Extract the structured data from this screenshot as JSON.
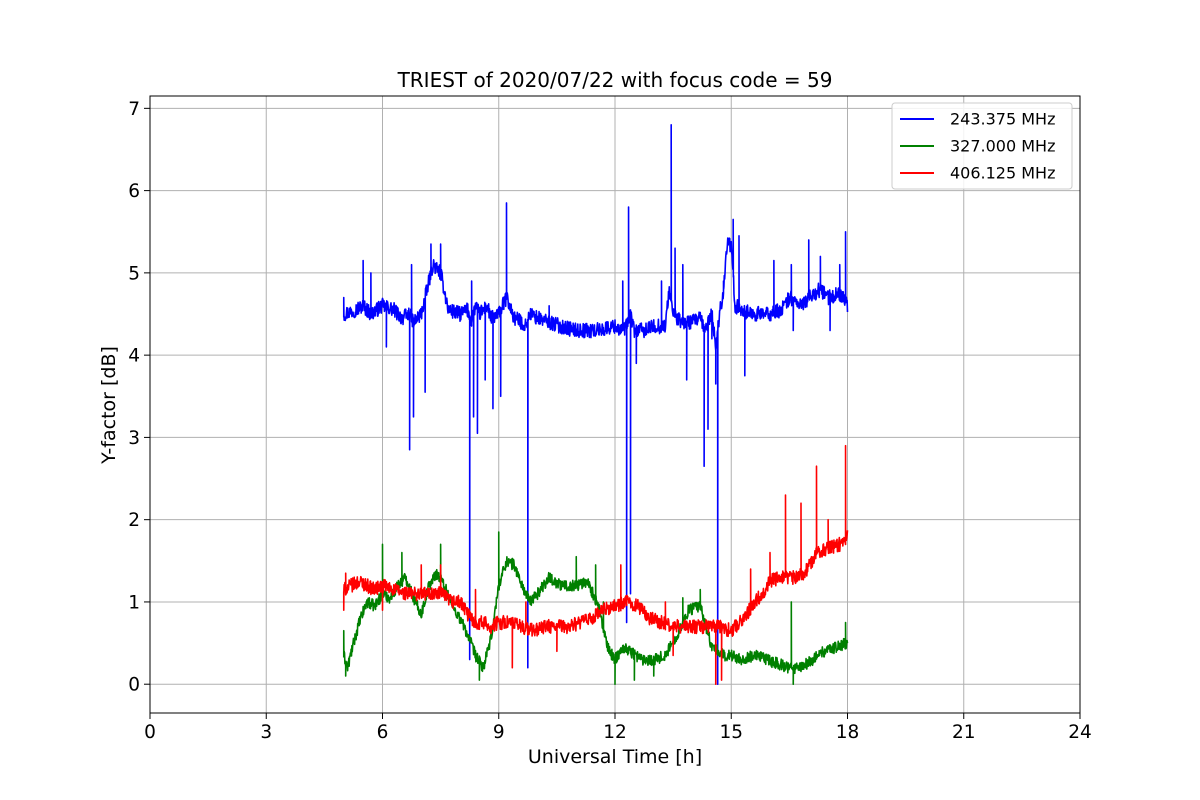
{
  "chart_data": {
    "type": "line",
    "title": "TRIEST of 2020/07/22 with focus code = 59",
    "xlabel": "Universal Time [h]",
    "ylabel": "Y-factor [dB]",
    "xlim": [
      0,
      24
    ],
    "ylim": [
      -0.35,
      7.15
    ],
    "xticks": [
      0,
      3,
      6,
      9,
      12,
      15,
      18,
      21,
      24
    ],
    "yticks": [
      0,
      1,
      2,
      3,
      4,
      5,
      6,
      7
    ],
    "grid": true,
    "legend_position": "top-right",
    "series": [
      {
        "name": "243.375 MHz",
        "color": "#0000ff",
        "x": [
          5.0,
          5.3,
          5.5,
          5.7,
          6.0,
          6.3,
          6.5,
          6.7,
          6.8,
          7.0,
          7.2,
          7.3,
          7.5,
          7.7,
          8.0,
          8.2,
          8.3,
          8.4,
          8.5,
          8.7,
          8.8,
          9.0,
          9.2,
          9.4,
          9.6,
          9.7,
          9.8,
          10.0,
          10.3,
          10.6,
          11.0,
          11.5,
          12.0,
          12.2,
          12.3,
          12.4,
          12.5,
          12.8,
          13.0,
          13.3,
          13.4,
          13.5,
          13.7,
          14.0,
          14.2,
          14.3,
          14.5,
          14.6,
          14.7,
          14.8,
          14.9,
          15.0,
          15.1,
          15.3,
          15.5,
          15.8,
          16.0,
          16.3,
          16.5,
          16.8,
          17.0,
          17.3,
          17.5,
          17.8,
          18.0
        ],
        "y": [
          4.5,
          4.55,
          4.6,
          4.5,
          4.6,
          4.55,
          4.45,
          4.5,
          4.4,
          4.5,
          4.9,
          5.1,
          5.0,
          4.55,
          4.5,
          4.55,
          4.4,
          4.6,
          4.5,
          4.6,
          4.45,
          4.5,
          4.7,
          4.45,
          4.4,
          4.35,
          4.5,
          4.45,
          4.4,
          4.35,
          4.3,
          4.3,
          4.35,
          4.3,
          4.35,
          4.5,
          4.3,
          4.3,
          4.35,
          4.35,
          4.8,
          4.5,
          4.4,
          4.4,
          4.45,
          4.3,
          4.5,
          4.1,
          4.5,
          4.8,
          5.4,
          5.3,
          4.6,
          4.55,
          4.5,
          4.5,
          4.5,
          4.55,
          4.7,
          4.6,
          4.7,
          4.8,
          4.7,
          4.75,
          4.6
        ],
        "spikes": [
          [
            5.0,
            4.7
          ],
          [
            5.5,
            5.15
          ],
          [
            5.7,
            5.0
          ],
          [
            6.1,
            4.1
          ],
          [
            6.7,
            2.85
          ],
          [
            6.75,
            5.1
          ],
          [
            6.8,
            3.25
          ],
          [
            7.1,
            3.55
          ],
          [
            7.25,
            5.35
          ],
          [
            7.5,
            5.35
          ],
          [
            8.25,
            0.3
          ],
          [
            8.3,
            4.9
          ],
          [
            8.35,
            3.25
          ],
          [
            8.45,
            3.05
          ],
          [
            8.65,
            3.7
          ],
          [
            8.85,
            3.35
          ],
          [
            9.05,
            3.5
          ],
          [
            9.2,
            5.85
          ],
          [
            9.75,
            0.2
          ],
          [
            10.3,
            4.6
          ],
          [
            12.2,
            4.9
          ],
          [
            12.3,
            0.75
          ],
          [
            12.35,
            5.8
          ],
          [
            12.4,
            1.1
          ],
          [
            12.55,
            3.9
          ],
          [
            13.2,
            4.9
          ],
          [
            13.45,
            6.8
          ],
          [
            13.55,
            5.3
          ],
          [
            13.75,
            5.1
          ],
          [
            13.85,
            3.7
          ],
          [
            14.3,
            2.65
          ],
          [
            14.4,
            3.1
          ],
          [
            14.5,
            4.2
          ],
          [
            14.6,
            3.65
          ],
          [
            14.65,
            0.0
          ],
          [
            14.8,
            4.9
          ],
          [
            15.05,
            5.65
          ],
          [
            15.2,
            5.45
          ],
          [
            15.35,
            3.75
          ],
          [
            16.1,
            5.15
          ],
          [
            16.55,
            5.1
          ],
          [
            16.6,
            4.3
          ],
          [
            17.0,
            5.4
          ],
          [
            17.3,
            5.2
          ],
          [
            17.55,
            4.3
          ],
          [
            17.8,
            5.1
          ],
          [
            17.95,
            5.5
          ]
        ]
      },
      {
        "name": "327.000 MHz",
        "color": "#008000",
        "x": [
          5.0,
          5.1,
          5.2,
          5.4,
          5.6,
          5.8,
          6.0,
          6.2,
          6.4,
          6.6,
          6.8,
          7.0,
          7.2,
          7.4,
          7.6,
          7.8,
          8.0,
          8.2,
          8.4,
          8.6,
          8.8,
          9.0,
          9.2,
          9.4,
          9.6,
          9.8,
          10.0,
          10.3,
          10.6,
          11.0,
          11.3,
          11.6,
          11.8,
          12.0,
          12.2,
          12.4,
          12.7,
          13.0,
          13.3,
          13.6,
          13.9,
          14.2,
          14.5,
          14.8,
          15.0,
          15.3,
          15.6,
          15.9,
          16.2,
          16.5,
          16.8,
          17.1,
          17.4,
          17.7,
          18.0
        ],
        "y": [
          0.35,
          0.2,
          0.4,
          0.75,
          1.0,
          0.95,
          1.1,
          1.05,
          1.2,
          1.3,
          1.05,
          0.85,
          1.2,
          1.35,
          1.2,
          0.95,
          0.8,
          0.6,
          0.35,
          0.2,
          0.55,
          1.2,
          1.5,
          1.45,
          1.2,
          1.0,
          1.1,
          1.3,
          1.2,
          1.2,
          1.25,
          0.9,
          0.45,
          0.3,
          0.45,
          0.4,
          0.3,
          0.3,
          0.35,
          0.6,
          0.9,
          0.95,
          0.45,
          0.35,
          0.35,
          0.3,
          0.35,
          0.3,
          0.25,
          0.2,
          0.2,
          0.3,
          0.4,
          0.45,
          0.5
        ],
        "spikes": [
          [
            5.0,
            0.65
          ],
          [
            5.05,
            0.1
          ],
          [
            6.0,
            1.7
          ],
          [
            6.5,
            1.6
          ],
          [
            7.5,
            1.7
          ],
          [
            8.5,
            0.05
          ],
          [
            9.0,
            1.85
          ],
          [
            11.0,
            1.55
          ],
          [
            11.5,
            1.45
          ],
          [
            11.7,
            1.0
          ],
          [
            12.0,
            0.0
          ],
          [
            12.5,
            0.05
          ],
          [
            13.0,
            0.1
          ],
          [
            13.75,
            1.05
          ],
          [
            14.2,
            1.15
          ],
          [
            16.55,
            1.0
          ],
          [
            16.6,
            0.0
          ],
          [
            17.95,
            0.75
          ]
        ]
      },
      {
        "name": "406.125 MHz",
        "color": "#ff0000",
        "x": [
          5.0,
          5.2,
          5.4,
          5.6,
          5.8,
          6.0,
          6.3,
          6.6,
          6.9,
          7.2,
          7.5,
          7.8,
          8.0,
          8.2,
          8.4,
          8.6,
          8.8,
          9.0,
          9.3,
          9.6,
          9.9,
          10.2,
          10.5,
          10.8,
          11.1,
          11.4,
          11.7,
          12.0,
          12.3,
          12.6,
          12.9,
          13.2,
          13.5,
          13.8,
          14.1,
          14.4,
          14.7,
          15.0,
          15.2,
          15.4,
          15.6,
          15.8,
          16.0,
          16.3,
          16.6,
          16.9,
          17.2,
          17.5,
          17.8,
          18.0
        ],
        "y": [
          1.15,
          1.2,
          1.25,
          1.2,
          1.15,
          1.2,
          1.15,
          1.1,
          1.1,
          1.1,
          1.1,
          1.0,
          1.0,
          0.85,
          0.75,
          0.75,
          0.7,
          0.75,
          0.75,
          0.7,
          0.65,
          0.7,
          0.7,
          0.7,
          0.75,
          0.8,
          0.9,
          0.95,
          1.0,
          0.95,
          0.8,
          0.75,
          0.7,
          0.7,
          0.7,
          0.7,
          0.7,
          0.65,
          0.75,
          0.85,
          1.0,
          1.1,
          1.25,
          1.3,
          1.3,
          1.35,
          1.6,
          1.65,
          1.7,
          1.8
        ],
        "spikes": [
          [
            5.0,
            0.9
          ],
          [
            5.05,
            1.35
          ],
          [
            6.0,
            0.9
          ],
          [
            7.0,
            1.45
          ],
          [
            7.5,
            1.45
          ],
          [
            8.4,
            1.15
          ],
          [
            9.35,
            0.2
          ],
          [
            9.7,
            1.0
          ],
          [
            10.5,
            0.4
          ],
          [
            12.15,
            1.45
          ],
          [
            13.3,
            1.0
          ],
          [
            13.5,
            0.35
          ],
          [
            14.6,
            0.0
          ],
          [
            14.75,
            0.05
          ],
          [
            15.5,
            1.4
          ],
          [
            16.0,
            1.6
          ],
          [
            16.4,
            2.3
          ],
          [
            16.8,
            2.2
          ],
          [
            17.2,
            2.65
          ],
          [
            17.5,
            2.0
          ],
          [
            17.95,
            2.9
          ]
        ]
      }
    ]
  }
}
